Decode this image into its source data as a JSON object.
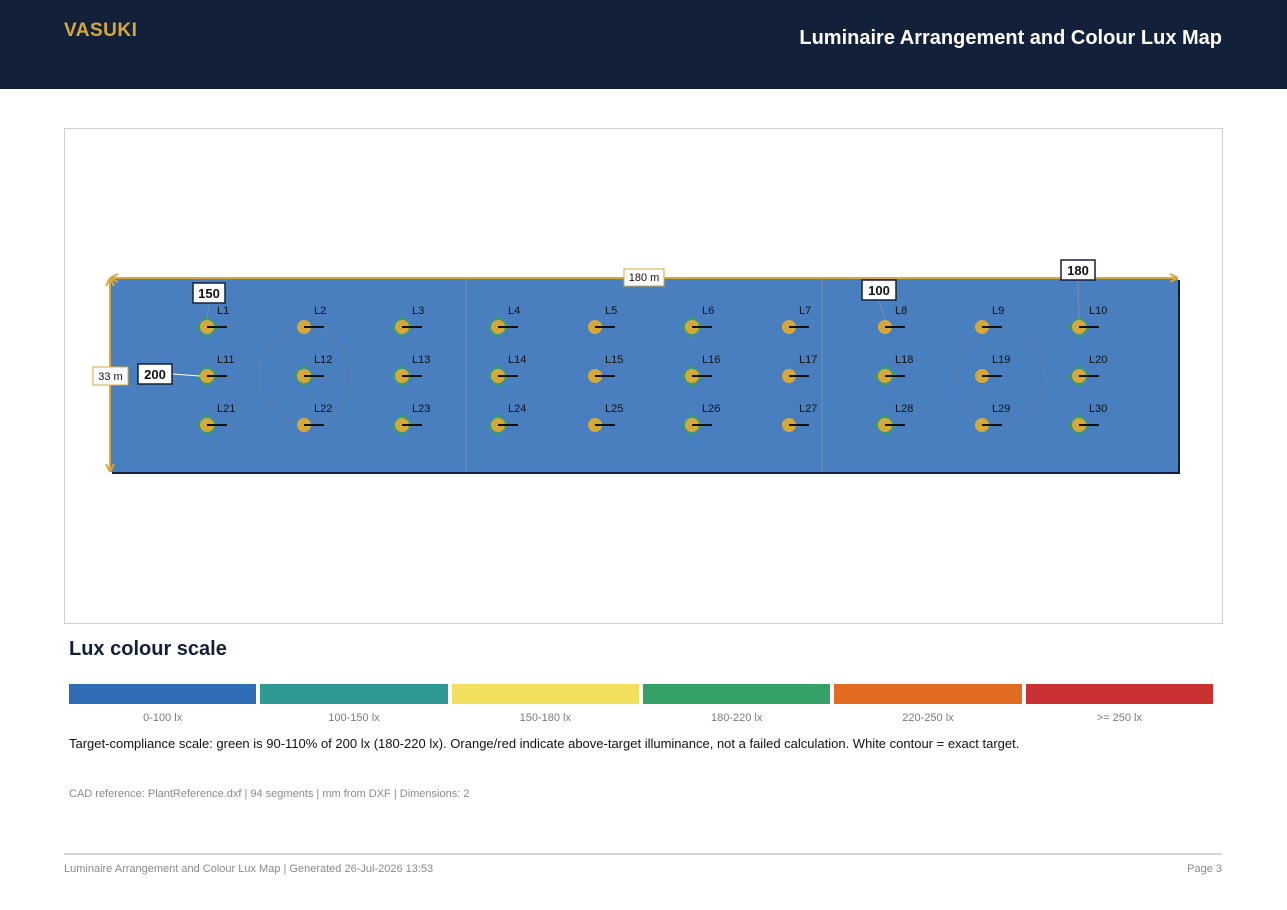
{
  "header": {
    "brand": "VASUKI",
    "title": "Luminaire Arrangement and Colour Lux Map"
  },
  "map": {
    "width_dim_label": "180 m",
    "height_dim_label": "33 m",
    "fill_color": "#4a7fbf",
    "lux_tags": [
      {
        "value": "150",
        "attached_to": "L1"
      },
      {
        "value": "200",
        "attached_to": "L11"
      },
      {
        "value": "100",
        "attached_to": "L8"
      },
      {
        "value": "180",
        "attached_to": "L10"
      }
    ],
    "luminaire_rows": [
      [
        "L1",
        "L2",
        "L3",
        "L4",
        "L5",
        "L6",
        "L7",
        "L8",
        "L9",
        "L10"
      ],
      [
        "L11",
        "L12",
        "L13",
        "L14",
        "L15",
        "L16",
        "L17",
        "L18",
        "L19",
        "L20"
      ],
      [
        "L21",
        "L22",
        "L23",
        "L24",
        "L25",
        "L26",
        "L27",
        "L28",
        "L29",
        "L30"
      ]
    ]
  },
  "scale": {
    "title": "Lux colour scale",
    "bands": [
      {
        "label": "0-100 lx",
        "color": "#2e6db5"
      },
      {
        "label": "100-150 lx",
        "color": "#2e9a93"
      },
      {
        "label": "150-180 lx",
        "color": "#f3df5f"
      },
      {
        "label": "180-220 lx",
        "color": "#35a067"
      },
      {
        "label": "220-250 lx",
        "color": "#e06b21"
      },
      {
        "label": ">= 250 lx",
        "color": "#c83032"
      }
    ],
    "note": "Target-compliance scale: green is 90-110% of 200 lx (180-220 lx). Orange/red indicate above-target illuminance, not a failed calculation. White contour = exact target."
  },
  "cad_reference": "CAD reference: PlantReference.dxf | 94 segments | mm from DXF | Dimensions: 2",
  "footer": {
    "left": "Luminaire Arrangement and Colour Lux Map | Generated 26-Jul-2026 13:53",
    "right": "Page 3"
  },
  "colors": {
    "header_bg": "#12203a",
    "brand": "#d6a83a",
    "luminaire": "#d6a83a",
    "diamond": "#35a067"
  }
}
